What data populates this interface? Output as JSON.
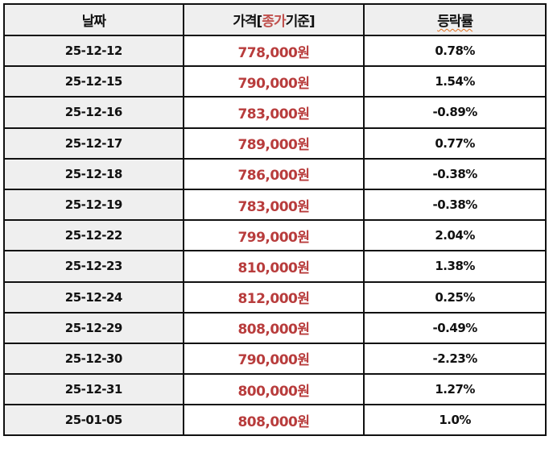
{
  "table": {
    "headers": {
      "date": "날짜",
      "price_prefix": "가격[",
      "price_accent": "종가",
      "price_suffix": "기준]",
      "change": "등락률"
    },
    "accent_color": "#c0504d",
    "price_color": "#b83c3c",
    "rows": [
      {
        "date": "25-12-12",
        "price": "778,000원",
        "change": "0.78%"
      },
      {
        "date": "25-12-15",
        "price": "790,000원",
        "change": "1.54%"
      },
      {
        "date": "25-12-16",
        "price": "783,000원",
        "change": "-0.89%"
      },
      {
        "date": "25-12-17",
        "price": "789,000원",
        "change": "0.77%"
      },
      {
        "date": "25-12-18",
        "price": "786,000원",
        "change": "-0.38%"
      },
      {
        "date": "25-12-19",
        "price": "783,000원",
        "change": "-0.38%"
      },
      {
        "date": "25-12-22",
        "price": "799,000원",
        "change": "2.04%"
      },
      {
        "date": "25-12-23",
        "price": "810,000원",
        "change": "1.38%"
      },
      {
        "date": "25-12-24",
        "price": "812,000원",
        "change": "0.25%"
      },
      {
        "date": "25-12-29",
        "price": "808,000원",
        "change": "-0.49%"
      },
      {
        "date": "25-12-30",
        "price": "790,000원",
        "change": "-2.23%"
      },
      {
        "date": "25-12-31",
        "price": "800,000원",
        "change": "1.27%"
      },
      {
        "date": "25-01-05",
        "price": "808,000원",
        "change": "1.0%"
      }
    ]
  }
}
